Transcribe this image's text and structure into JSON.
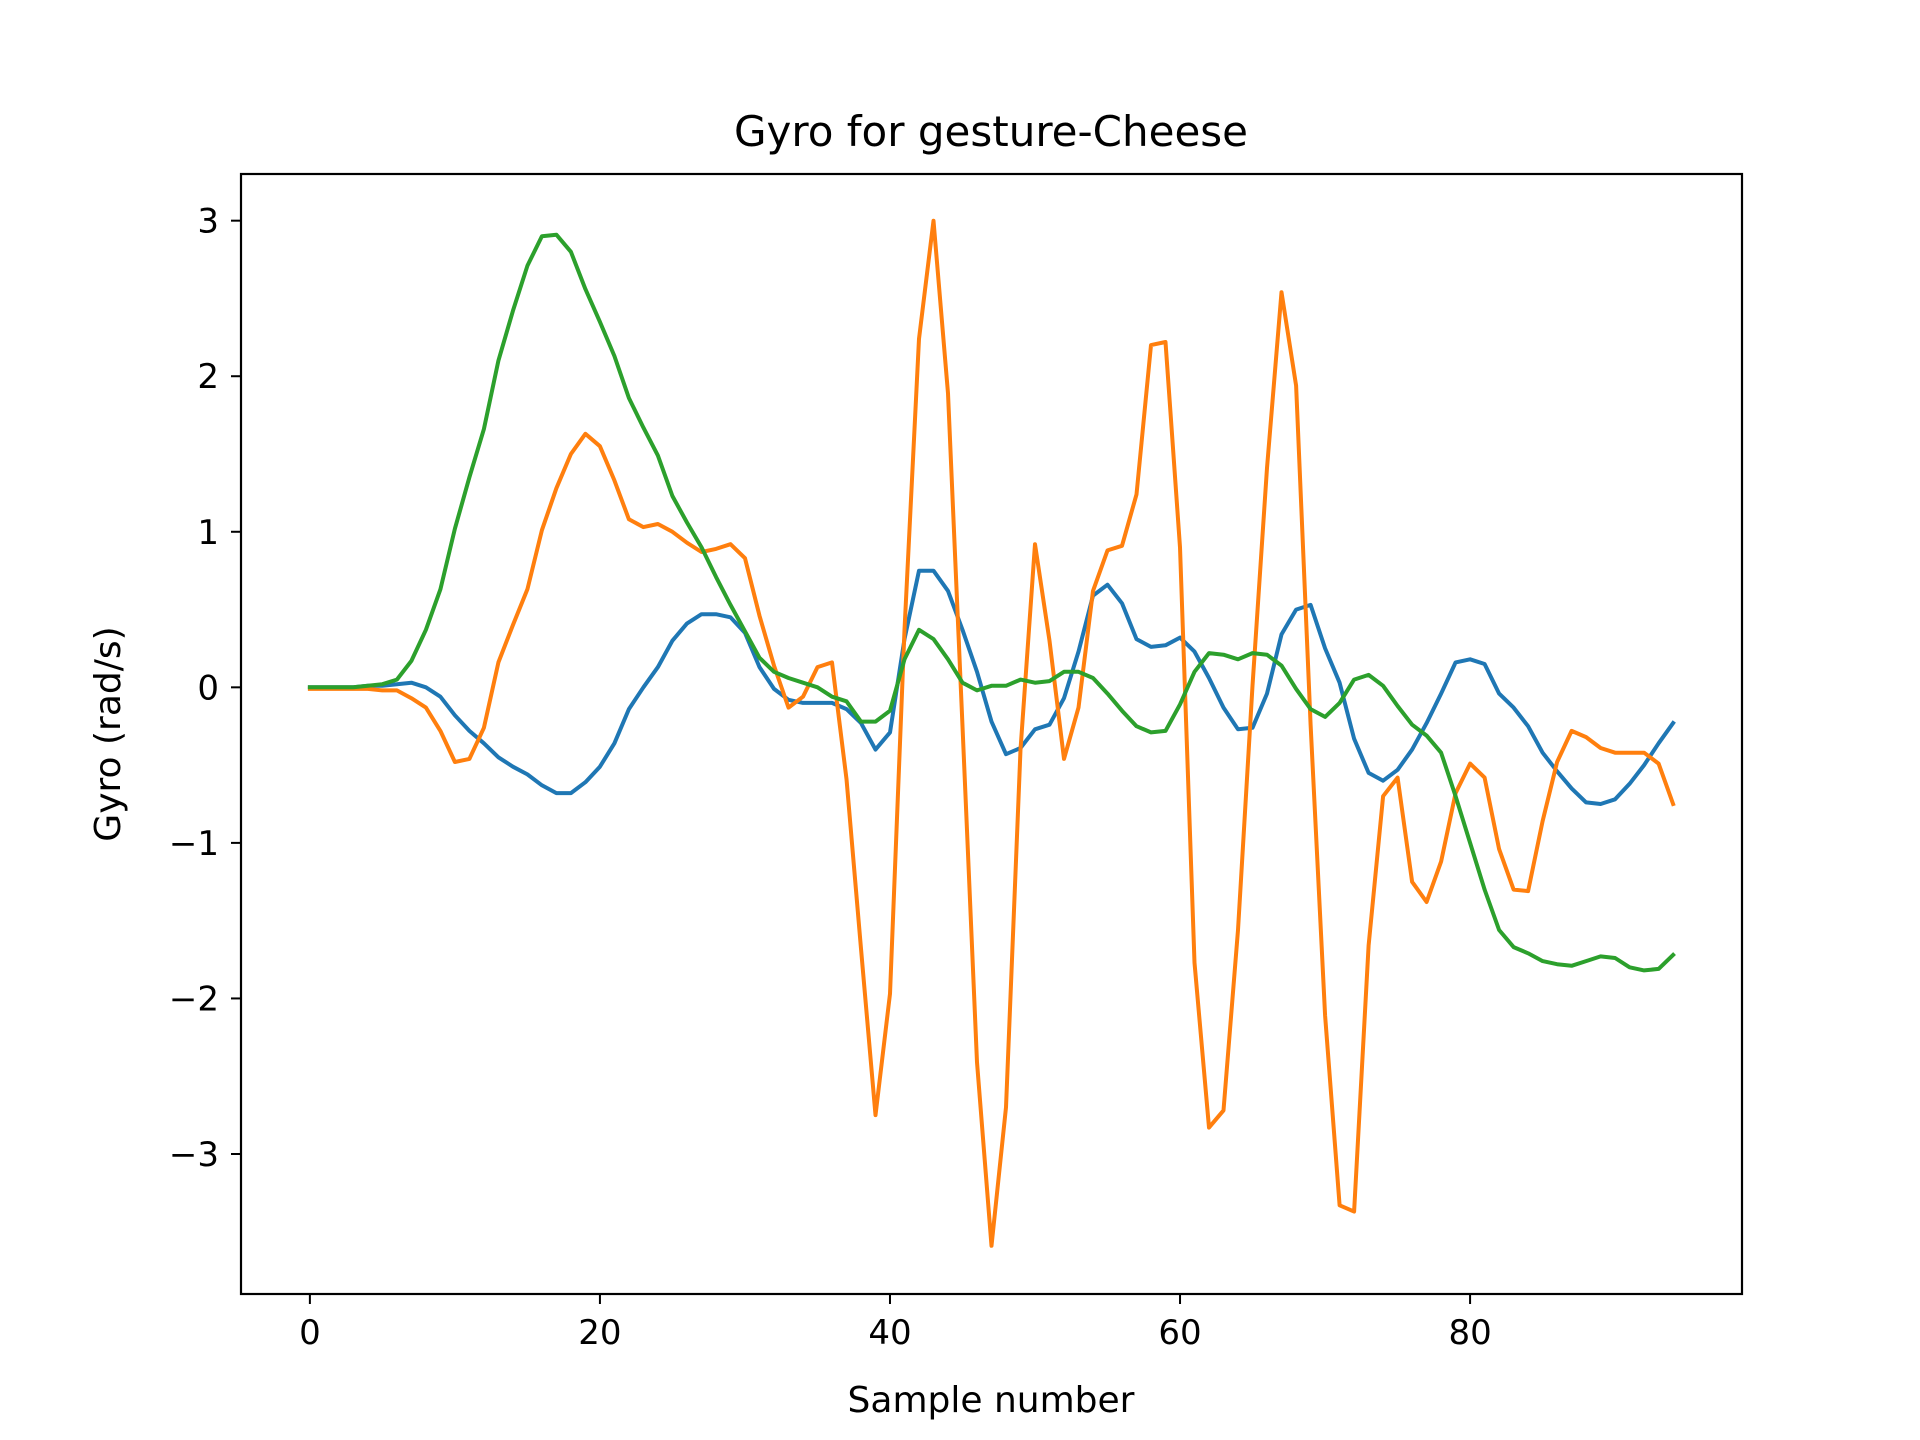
{
  "chart_data": {
    "type": "line",
    "title": "Gyro for gesture-Cheese",
    "xlabel": "Sample number",
    "ylabel": "Gyro  (rad/s)",
    "xlim": [
      -4.75,
      98.75
    ],
    "ylim": [
      -3.9,
      3.3
    ],
    "xticks": [
      0,
      20,
      40,
      60,
      80
    ],
    "yticks": [
      3,
      2,
      1,
      0,
      -1,
      -2,
      -3
    ],
    "grid": false,
    "legend": "none",
    "x": [
      0,
      1,
      2,
      3,
      4,
      5,
      6,
      7,
      8,
      9,
      10,
      11,
      12,
      13,
      14,
      15,
      16,
      17,
      18,
      19,
      20,
      21,
      22,
      23,
      24,
      25,
      26,
      27,
      28,
      29,
      30,
      31,
      32,
      33,
      34,
      35,
      36,
      37,
      38,
      39,
      40,
      41,
      42,
      43,
      44,
      45,
      46,
      47,
      48,
      49,
      50,
      51,
      52,
      53,
      54,
      55,
      56,
      57,
      58,
      59,
      60,
      61,
      62,
      63,
      64,
      65,
      66,
      67,
      68,
      69,
      70,
      71,
      72,
      73,
      74,
      75,
      76,
      77,
      78,
      79,
      80,
      81,
      82,
      83,
      84,
      85,
      86,
      87,
      88,
      89,
      90,
      91,
      92,
      93,
      94
    ],
    "series": [
      {
        "color": "#1f77b4",
        "values": [
          0.0,
          0.0,
          0.0,
          0.0,
          0.01,
          0.01,
          0.02,
          0.03,
          0.0,
          -0.06,
          -0.18,
          -0.28,
          -0.36,
          -0.45,
          -0.51,
          -0.56,
          -0.63,
          -0.68,
          -0.68,
          -0.61,
          -0.51,
          -0.36,
          -0.14,
          0.0,
          0.13,
          0.3,
          0.41,
          0.47,
          0.47,
          0.45,
          0.35,
          0.13,
          -0.01,
          -0.08,
          -0.1,
          -0.1,
          -0.1,
          -0.14,
          -0.23,
          -0.4,
          -0.29,
          0.31,
          0.75,
          0.75,
          0.62,
          0.37,
          0.1,
          -0.22,
          -0.43,
          -0.39,
          -0.27,
          -0.24,
          -0.07,
          0.23,
          0.59,
          0.66,
          0.54,
          0.31,
          0.26,
          0.27,
          0.32,
          0.23,
          0.06,
          -0.13,
          -0.27,
          -0.26,
          -0.04,
          0.34,
          0.5,
          0.53,
          0.25,
          0.03,
          -0.33,
          -0.55,
          -0.6,
          -0.53,
          -0.4,
          -0.23,
          -0.04,
          0.16,
          0.18,
          0.15,
          -0.04,
          -0.13,
          -0.25,
          -0.42,
          -0.54,
          -0.65,
          -0.74,
          -0.75,
          -0.72,
          -0.62,
          -0.5,
          -0.36,
          -0.23
        ]
      },
      {
        "color": "#ff7f0e",
        "values": [
          -0.01,
          -0.01,
          -0.01,
          -0.01,
          -0.01,
          -0.02,
          -0.02,
          -0.07,
          -0.13,
          -0.28,
          -0.48,
          -0.46,
          -0.26,
          0.16,
          0.4,
          0.63,
          1.01,
          1.28,
          1.5,
          1.63,
          1.55,
          1.33,
          1.08,
          1.03,
          1.05,
          1.0,
          0.93,
          0.87,
          0.89,
          0.92,
          0.83,
          0.46,
          0.14,
          -0.13,
          -0.06,
          0.13,
          0.16,
          -0.59,
          -1.68,
          -2.75,
          -1.97,
          0.37,
          2.24,
          3.0,
          1.89,
          -0.25,
          -2.41,
          -3.59,
          -2.7,
          -0.4,
          0.92,
          0.3,
          -0.46,
          -0.13,
          0.62,
          0.88,
          0.91,
          1.24,
          2.2,
          2.22,
          0.9,
          -1.77,
          -2.83,
          -2.72,
          -1.56,
          0.01,
          1.41,
          2.54,
          1.94,
          -0.24,
          -2.11,
          -3.33,
          -3.37,
          -1.66,
          -0.7,
          -0.58,
          -1.25,
          -1.38,
          -1.12,
          -0.68,
          -0.49,
          -0.58,
          -1.04,
          -1.3,
          -1.31,
          -0.86,
          -0.48,
          -0.28,
          -0.32,
          -0.39,
          -0.42,
          -0.42,
          -0.42,
          -0.49,
          -0.75
        ]
      },
      {
        "color": "#2ca02c",
        "values": [
          0.0,
          0.0,
          0.0,
          0.0,
          0.01,
          0.02,
          0.05,
          0.17,
          0.37,
          0.63,
          1.02,
          1.35,
          1.66,
          2.1,
          2.42,
          2.71,
          2.9,
          2.91,
          2.8,
          2.56,
          2.35,
          2.13,
          1.86,
          1.67,
          1.49,
          1.23,
          1.06,
          0.9,
          0.71,
          0.53,
          0.36,
          0.19,
          0.1,
          0.06,
          0.03,
          0.0,
          -0.06,
          -0.09,
          -0.22,
          -0.22,
          -0.15,
          0.18,
          0.37,
          0.31,
          0.18,
          0.03,
          -0.02,
          0.01,
          0.01,
          0.05,
          0.03,
          0.04,
          0.1,
          0.1,
          0.06,
          -0.04,
          -0.15,
          -0.25,
          -0.29,
          -0.28,
          -0.11,
          0.1,
          0.22,
          0.21,
          0.18,
          0.22,
          0.21,
          0.14,
          -0.01,
          -0.14,
          -0.19,
          -0.1,
          0.05,
          0.08,
          0.01,
          -0.12,
          -0.24,
          -0.31,
          -0.42,
          -0.7,
          -1.0,
          -1.3,
          -1.56,
          -1.67,
          -1.71,
          -1.76,
          -1.78,
          -1.79,
          -1.76,
          -1.73,
          -1.74,
          -1.8,
          -1.82,
          -1.81,
          -1.72
        ]
      }
    ]
  }
}
